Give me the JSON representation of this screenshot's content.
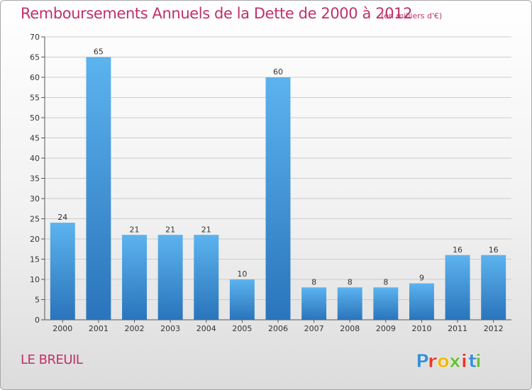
{
  "chart_data": {
    "type": "bar",
    "title": "Remboursements Annuels de la Dette de 2000 à 2012",
    "subtitle": "(en milliers d'€)",
    "categories": [
      "2000",
      "2001",
      "2002",
      "2003",
      "2004",
      "2005",
      "2006",
      "2007",
      "2008",
      "2009",
      "2010",
      "2011",
      "2012"
    ],
    "values": [
      24,
      65,
      21,
      21,
      21,
      10,
      60,
      8,
      8,
      8,
      9,
      16,
      16
    ],
    "ylim": [
      0,
      70
    ],
    "yticks": [
      0,
      5,
      10,
      15,
      20,
      25,
      30,
      35,
      40,
      45,
      50,
      55,
      60,
      65,
      70
    ],
    "grid": true,
    "bar_color": "#3a8fd6",
    "bar_color_light": "#5cb3ee",
    "bar_color_dark": "#2a74bb",
    "grid_color": "#cccccc",
    "xlabel": "",
    "ylabel": ""
  },
  "footer": {
    "town": "LE BREUIL",
    "logo_text": "Proxiti",
    "logo_colors": [
      "#3c8fd9",
      "#e23a2b",
      "#f2b705",
      "#6bbf3b",
      "#e23a2b",
      "#3c8fd9",
      "#6bbf3b"
    ]
  },
  "colors": {
    "title": "#c0306a"
  }
}
